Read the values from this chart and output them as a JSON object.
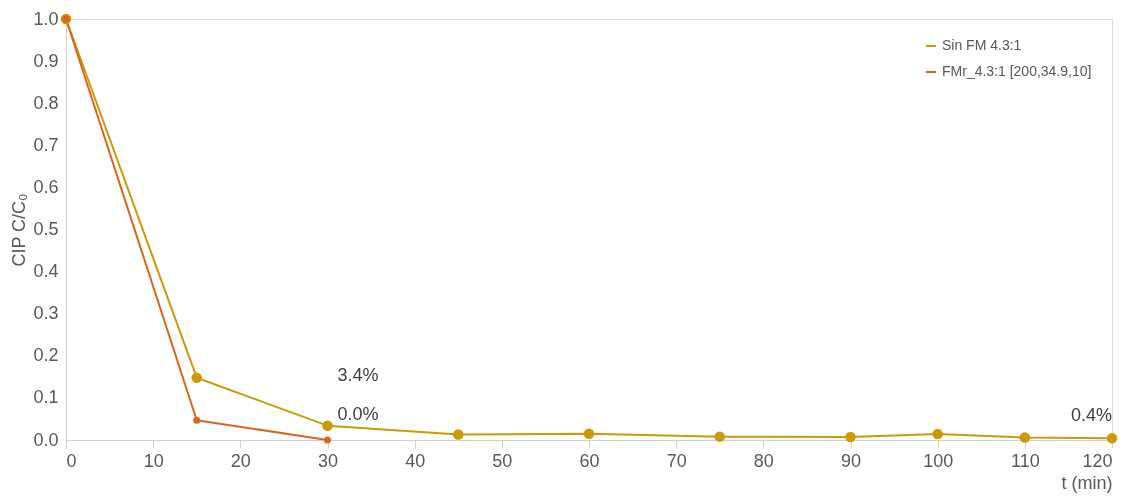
{
  "chart_data": {
    "type": "line",
    "xlabel": "t (min)",
    "ylabel": "CIP C/C₀",
    "xlim": [
      0,
      120
    ],
    "xticks": [
      0,
      10,
      20,
      30,
      40,
      50,
      60,
      70,
      80,
      90,
      100,
      110,
      120
    ],
    "ylim": [
      0,
      1
    ],
    "yticks": [
      {
        "value": 0,
        "label": "0.0"
      },
      {
        "value": 0.1,
        "label": "0.1"
      },
      {
        "value": 0.2,
        "label": "0.2"
      },
      {
        "value": 0.3,
        "label": "0.3"
      },
      {
        "value": 0.4,
        "label": "0.4"
      },
      {
        "value": 0.5,
        "label": "0.5"
      },
      {
        "value": 0.6,
        "label": "0.6"
      },
      {
        "value": 0.7,
        "label": "0.7"
      },
      {
        "value": 0.8,
        "label": "0.8"
      },
      {
        "value": 0.9,
        "label": "0.9"
      },
      {
        "value": 1,
        "label": "1.0"
      }
    ],
    "grid": false,
    "legend": "top right",
    "marker": "circle",
    "line_style": "solid",
    "series": [
      {
        "name": "Sin FM 4.3:1",
        "color": "#cc9a06",
        "x": [
          0,
          15,
          30,
          45,
          60,
          75,
          90,
          100,
          110,
          120
        ],
        "values": [
          1.0,
          0.148,
          0.034,
          0.013,
          0.015,
          0.008,
          0.007,
          0.014,
          0.006,
          0.004
        ],
        "value_labels": [
          null,
          null,
          "3.4%",
          null,
          null,
          null,
          null,
          null,
          null,
          "0.4%"
        ]
      },
      {
        "name": "FMr_4.3:1 [200,34.9,10]",
        "color": "#d9661f",
        "x": [
          0,
          15,
          30
        ],
        "values": [
          1.0,
          0.047,
          0.0
        ],
        "value_labels": [
          null,
          null,
          "0.0%"
        ]
      }
    ]
  }
}
